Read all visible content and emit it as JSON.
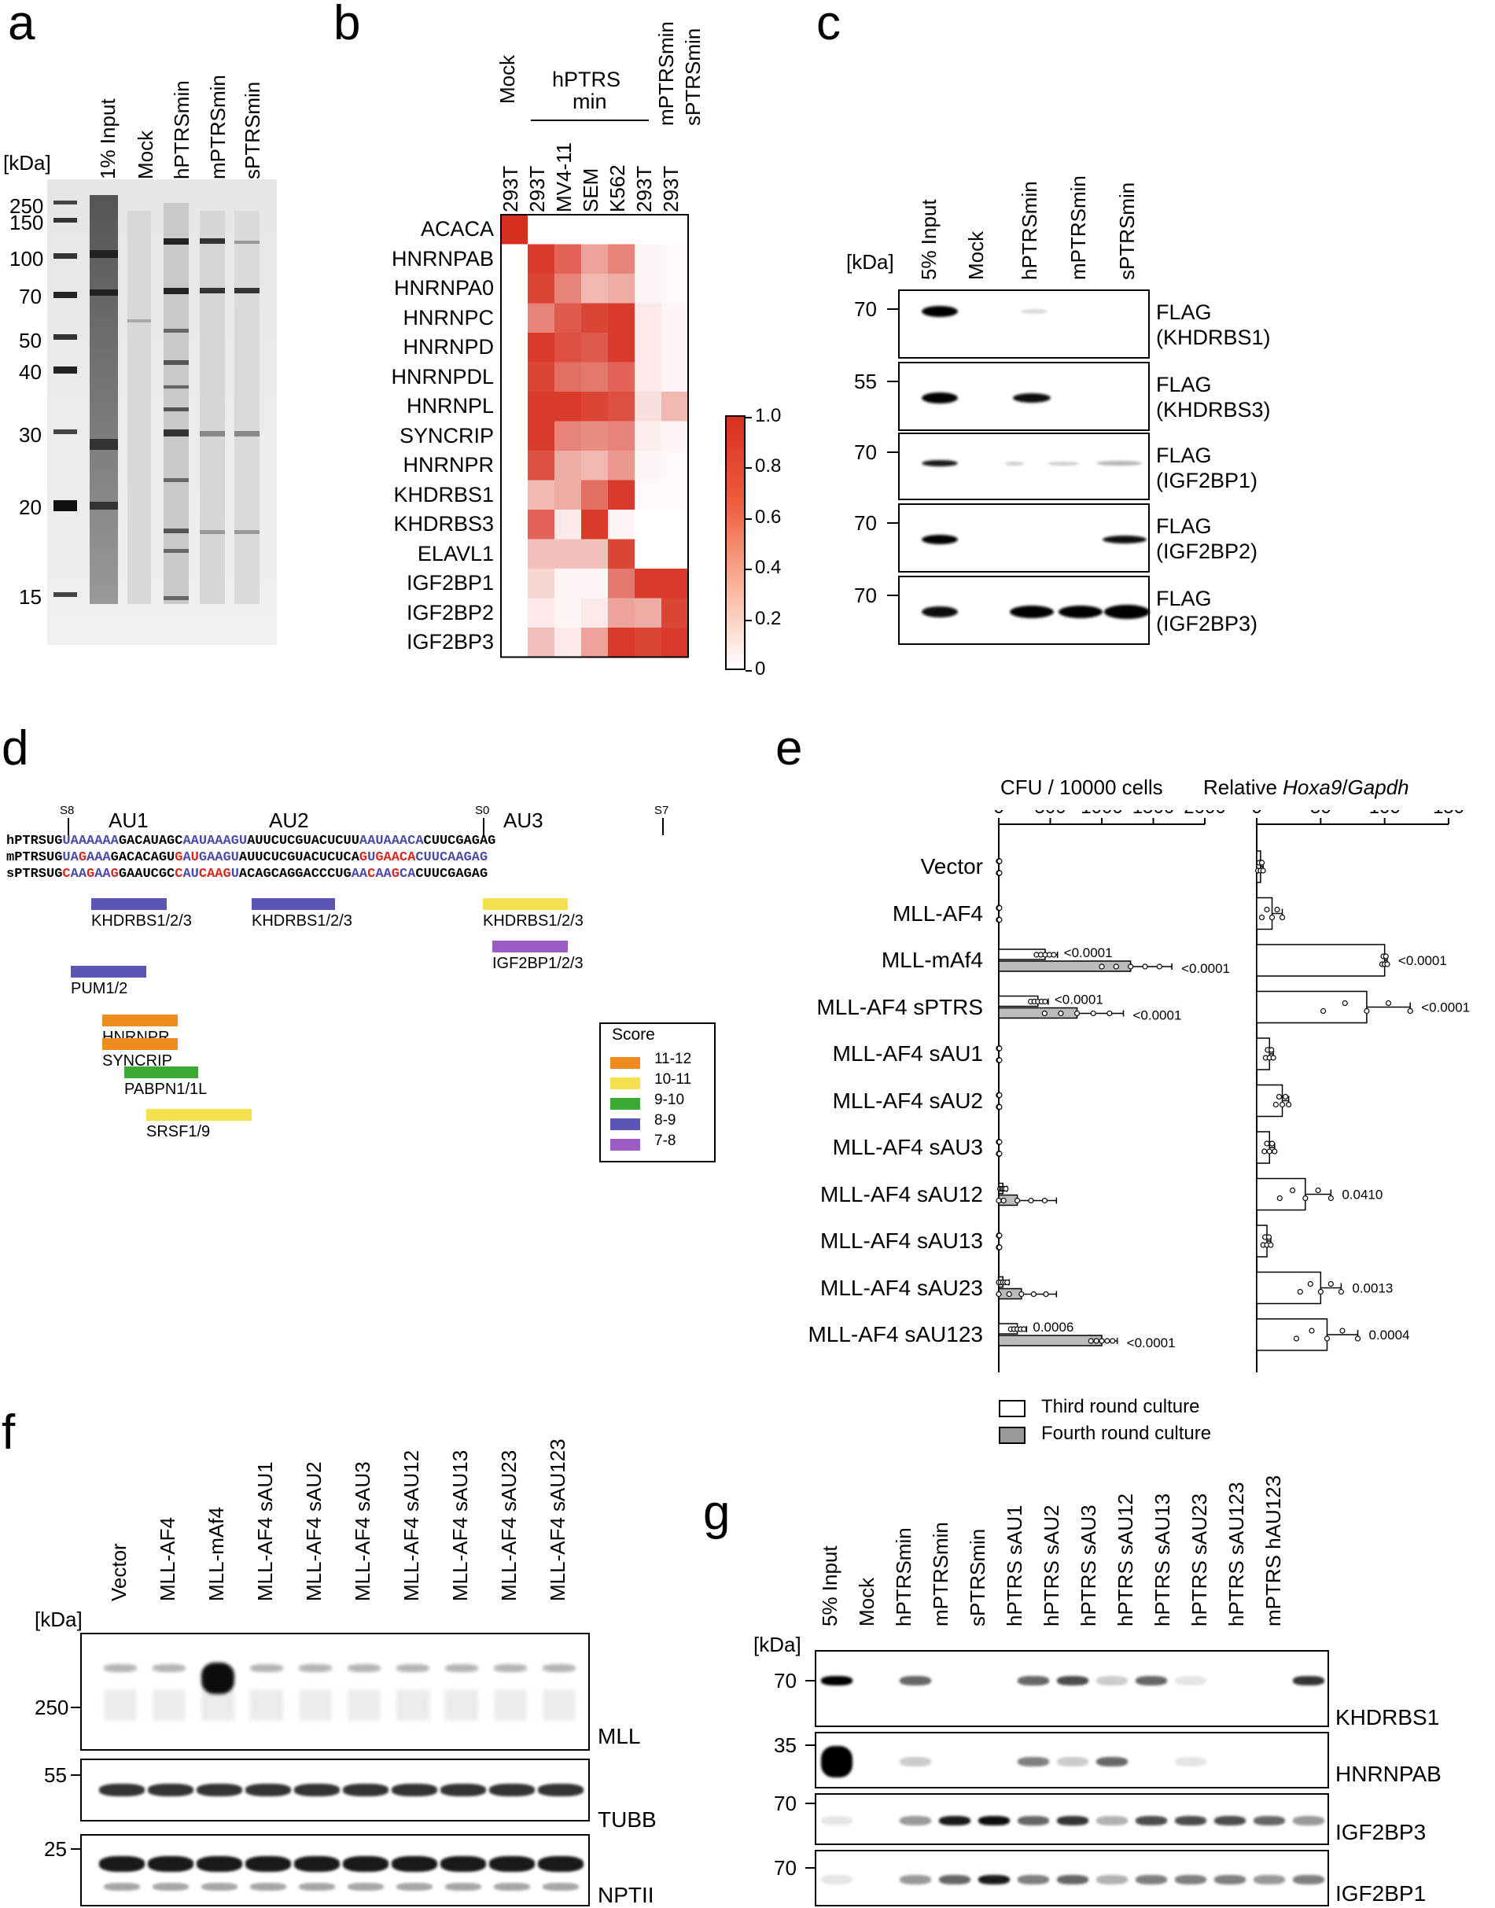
{
  "panel_labels": {
    "a": "a",
    "b": "b",
    "c": "c",
    "d": "d",
    "e": "e",
    "f": "f",
    "g": "g"
  },
  "panel_a": {
    "unit": "[kDa]",
    "lanes": [
      "1% Input",
      "Mock",
      "hPTRSmin",
      "mPTRSmin",
      "sPTRSmin"
    ],
    "markers": [
      "250",
      "150",
      "100",
      "70",
      "50",
      "40",
      "30",
      "20",
      "15"
    ]
  },
  "panel_b": {
    "col_header_mock": "Mock",
    "col_header_group": "hPTRS min",
    "col_header_group_l1": "hPTRS",
    "col_header_group_l2": "min",
    "col_header_m": "mPTRSmin",
    "col_header_s": "sPTRSmin",
    "cells": [
      "293T",
      "293T",
      "MV4-11",
      "SEM",
      "K562",
      "293T",
      "293T"
    ],
    "rows": [
      "ACACA",
      "HNRNPAB",
      "HNRNPA0",
      "HNRNPC",
      "HNRNPD",
      "HNRNPDL",
      "HNRNPL",
      "SYNCRIP",
      "HNRNPR",
      "KHDRBS1",
      "KHDRBS3",
      "ELAVL1",
      "IGF2BP1",
      "IGF2BP2",
      "IGF2BP3"
    ],
    "colorbar_ticks": [
      "1.0",
      "0.8",
      "0.6",
      "0.4",
      "0.2",
      "0"
    ],
    "low_color": "#ffffff",
    "high_color": "#d7301f",
    "values": [
      [
        1.0,
        0.0,
        0.0,
        0.0,
        0.0,
        0.0,
        0.0
      ],
      [
        0.0,
        0.95,
        0.75,
        0.45,
        0.6,
        0.05,
        0.03
      ],
      [
        0.0,
        0.9,
        0.6,
        0.35,
        0.4,
        0.05,
        0.03
      ],
      [
        0.0,
        0.6,
        0.8,
        0.9,
        0.95,
        0.1,
        0.05
      ],
      [
        0.0,
        0.95,
        0.85,
        0.8,
        0.95,
        0.1,
        0.05
      ],
      [
        0.0,
        0.9,
        0.7,
        0.65,
        0.75,
        0.1,
        0.05
      ],
      [
        0.0,
        0.95,
        0.95,
        0.9,
        0.85,
        0.15,
        0.35
      ],
      [
        0.0,
        0.95,
        0.6,
        0.55,
        0.6,
        0.08,
        0.05
      ],
      [
        0.0,
        0.85,
        0.4,
        0.35,
        0.5,
        0.05,
        0.03
      ],
      [
        0.0,
        0.35,
        0.4,
        0.7,
        0.95,
        0.03,
        0.03
      ],
      [
        0.0,
        0.75,
        0.1,
        0.95,
        0.05,
        0.0,
        0.0
      ],
      [
        0.0,
        0.3,
        0.3,
        0.3,
        0.9,
        0.0,
        0.0
      ],
      [
        0.0,
        0.2,
        0.05,
        0.05,
        0.65,
        0.95,
        0.95
      ],
      [
        0.0,
        0.1,
        0.05,
        0.1,
        0.45,
        0.4,
        0.9
      ],
      [
        0.0,
        0.3,
        0.1,
        0.45,
        0.95,
        0.9,
        0.95
      ]
    ]
  },
  "panel_c": {
    "unit": "[kDa]",
    "lanes": [
      "5% Input",
      "Mock",
      "hPTRSmin",
      "mPTRSmin",
      "sPTRSmin"
    ],
    "blots": [
      {
        "mw": "70",
        "l1": "FLAG",
        "l2": "(KHDRBS1)"
      },
      {
        "mw": "55",
        "l1": "FLAG",
        "l2": "(KHDRBS3)"
      },
      {
        "mw": "70",
        "l1": "FLAG",
        "l2": "(IGF2BP1)"
      },
      {
        "mw": "70",
        "l1": "FLAG",
        "l2": "(IGF2BP2)"
      },
      {
        "mw": "70",
        "l1": "FLAG",
        "l2": "(IGF2BP3)"
      }
    ]
  },
  "panel_d": {
    "site_labels": [
      "S8",
      "S0",
      "S7"
    ],
    "au_labels": [
      "AU1",
      "AU2",
      "AU3"
    ],
    "seq_names": [
      "hPTRS",
      "mPTRS",
      "sPTRS"
    ],
    "seq_h": [
      "UG",
      "UAAAAAA",
      "GACAUAGC",
      "AAUAAAGU",
      "AUUCUCGUACUCUU",
      "AAUAAACA",
      "CUUCGAGAG"
    ],
    "seq_m": [
      "UG",
      "UA",
      "G",
      "AAA",
      "GACACAGU",
      "G",
      "A",
      "U",
      "GAAGU",
      "AUUCUCGUACUCUCA",
      "G",
      "U",
      "GAACA",
      "CUUCAAGAG"
    ],
    "seq_s": [
      "UG",
      "C",
      "AA",
      "G",
      "AA",
      "G",
      "GAAUCGC",
      "C",
      "AU",
      "CAAG",
      "U",
      "ACAGCAGGACCCUG",
      "AA",
      "C",
      "AA",
      "G",
      "CA",
      "CUUCGAGAG"
    ],
    "features": [
      {
        "name": "KHDRBS1/2/3",
        "color": "#5b56b6"
      },
      {
        "name": "KHDRBS1/2/3",
        "color": "#5b56b6"
      },
      {
        "name": "KHDRBS1/2/3",
        "color": "#f5e050"
      },
      {
        "name": "IGF2BP1/2/3",
        "color": "#9b5cc6"
      },
      {
        "name": "PUM1/2",
        "color": "#5b56b6"
      },
      {
        "name": "HNRNPR",
        "color": "#f08c1e"
      },
      {
        "name": "SYNCRIP",
        "color": "#f08c1e"
      },
      {
        "name": "PABPN1/1L",
        "color": "#3aaa35"
      },
      {
        "name": "SRSF1/9",
        "color": "#f5e050"
      }
    ],
    "score_title": "Score",
    "score_legend": [
      {
        "label": "11-12",
        "color": "#f08c1e"
      },
      {
        "label": "10-11",
        "color": "#f5e050"
      },
      {
        "label": "9-10",
        "color": "#3aaa35"
      },
      {
        "label": "8-9",
        "color": "#5b56b6"
      },
      {
        "label": "7-8",
        "color": "#9b5cc6"
      }
    ],
    "blue": "#4a4aa8",
    "red": "#d42a1e"
  },
  "chart_data": [
    {
      "type": "bar",
      "title": "CFU / 10000 cells",
      "categories": [
        "Vector",
        "MLL-AF4",
        "MLL-mAf4",
        "MLL-AF4 sPTRS",
        "MLL-AF4 sAU1",
        "MLL-AF4 sAU2",
        "MLL-AF4 sAU3",
        "MLL-AF4 sAU12",
        "MLL-AF4 sAU13",
        "MLL-AF4 sAU23",
        "MLL-AF4 sAU123"
      ],
      "xticks": [
        "0",
        "500",
        "1000",
        "1500",
        "2000"
      ],
      "xlim": [
        0,
        2000
      ],
      "series": [
        {
          "name": "Third round culture",
          "values": [
            0,
            0,
            450,
            380,
            0,
            0,
            0,
            40,
            0,
            40,
            180
          ],
          "err": [
            10,
            10,
            120,
            100,
            10,
            10,
            10,
            40,
            10,
            60,
            90
          ],
          "pvals": [
            "",
            "",
            "<0.0001",
            "<0.0001",
            "",
            "",
            "",
            "",
            "",
            "",
            "0.0006"
          ]
        },
        {
          "name": "Fourth round culture",
          "values": [
            0,
            0,
            1280,
            760,
            0,
            0,
            0,
            180,
            0,
            220,
            1000
          ],
          "err": [
            10,
            10,
            400,
            450,
            10,
            10,
            10,
            380,
            10,
            340,
            150
          ],
          "pvals": [
            "",
            "",
            "<0.0001",
            "<0.0001",
            "",
            "",
            "",
            "",
            "",
            "",
            "<0.0001"
          ]
        }
      ]
    },
    {
      "type": "bar",
      "title_pre": "Relative ",
      "title_it1": "Hoxa9",
      "title_mid": "/",
      "title_it2": "Gapdh",
      "xticks": [
        "0",
        "50",
        "100",
        "150"
      ],
      "xlim": [
        0,
        150
      ],
      "values": [
        3,
        12,
        100,
        86,
        10,
        20,
        10,
        38,
        8,
        50,
        55
      ],
      "err": [
        2,
        8,
        2,
        34,
        3,
        5,
        4,
        20,
        3,
        16,
        24
      ],
      "pvals": [
        "",
        "",
        "<0.0001",
        "<0.0001",
        "",
        "",
        "",
        "0.0410",
        "",
        "0.0013",
        "0.0004"
      ]
    }
  ],
  "panel_e_legend": [
    "Third round culture",
    "Fourth round culture"
  ],
  "panel_f": {
    "unit": "[kDa]",
    "lanes": [
      "Vector",
      "MLL-AF4",
      "MLL-mAf4",
      "MLL-AF4 sAU1",
      "MLL-AF4 sAU2",
      "MLL-AF4 sAU3",
      "MLL-AF4 sAU12",
      "MLL-AF4 sAU13",
      "MLL-AF4 sAU23",
      "MLL-AF4 sAU123"
    ],
    "blots": [
      {
        "mw": "250",
        "name": "MLL"
      },
      {
        "mw": "55",
        "name": "TUBB"
      },
      {
        "mw": "25",
        "name": "NPTII"
      }
    ]
  },
  "panel_g": {
    "unit": "[kDa]",
    "lanes": [
      "5% Input",
      "Mock",
      "hPTRSmin",
      "mPTRSmin",
      "sPTRSmin",
      "hPTRS sAU1",
      "hPTRS sAU2",
      "hPTRS sAU3",
      "hPTRS sAU12",
      "hPTRS sAU13",
      "hPTRS sAU23",
      "hPTRS sAU123",
      "mPTRS hAU123"
    ],
    "blots": [
      {
        "mw": "70",
        "name": "KHDRBS1"
      },
      {
        "mw": "35",
        "name": "HNRNPAB"
      },
      {
        "mw": "70",
        "name": "IGF2BP3"
      },
      {
        "mw": "70",
        "name": "IGF2BP1"
      }
    ]
  }
}
